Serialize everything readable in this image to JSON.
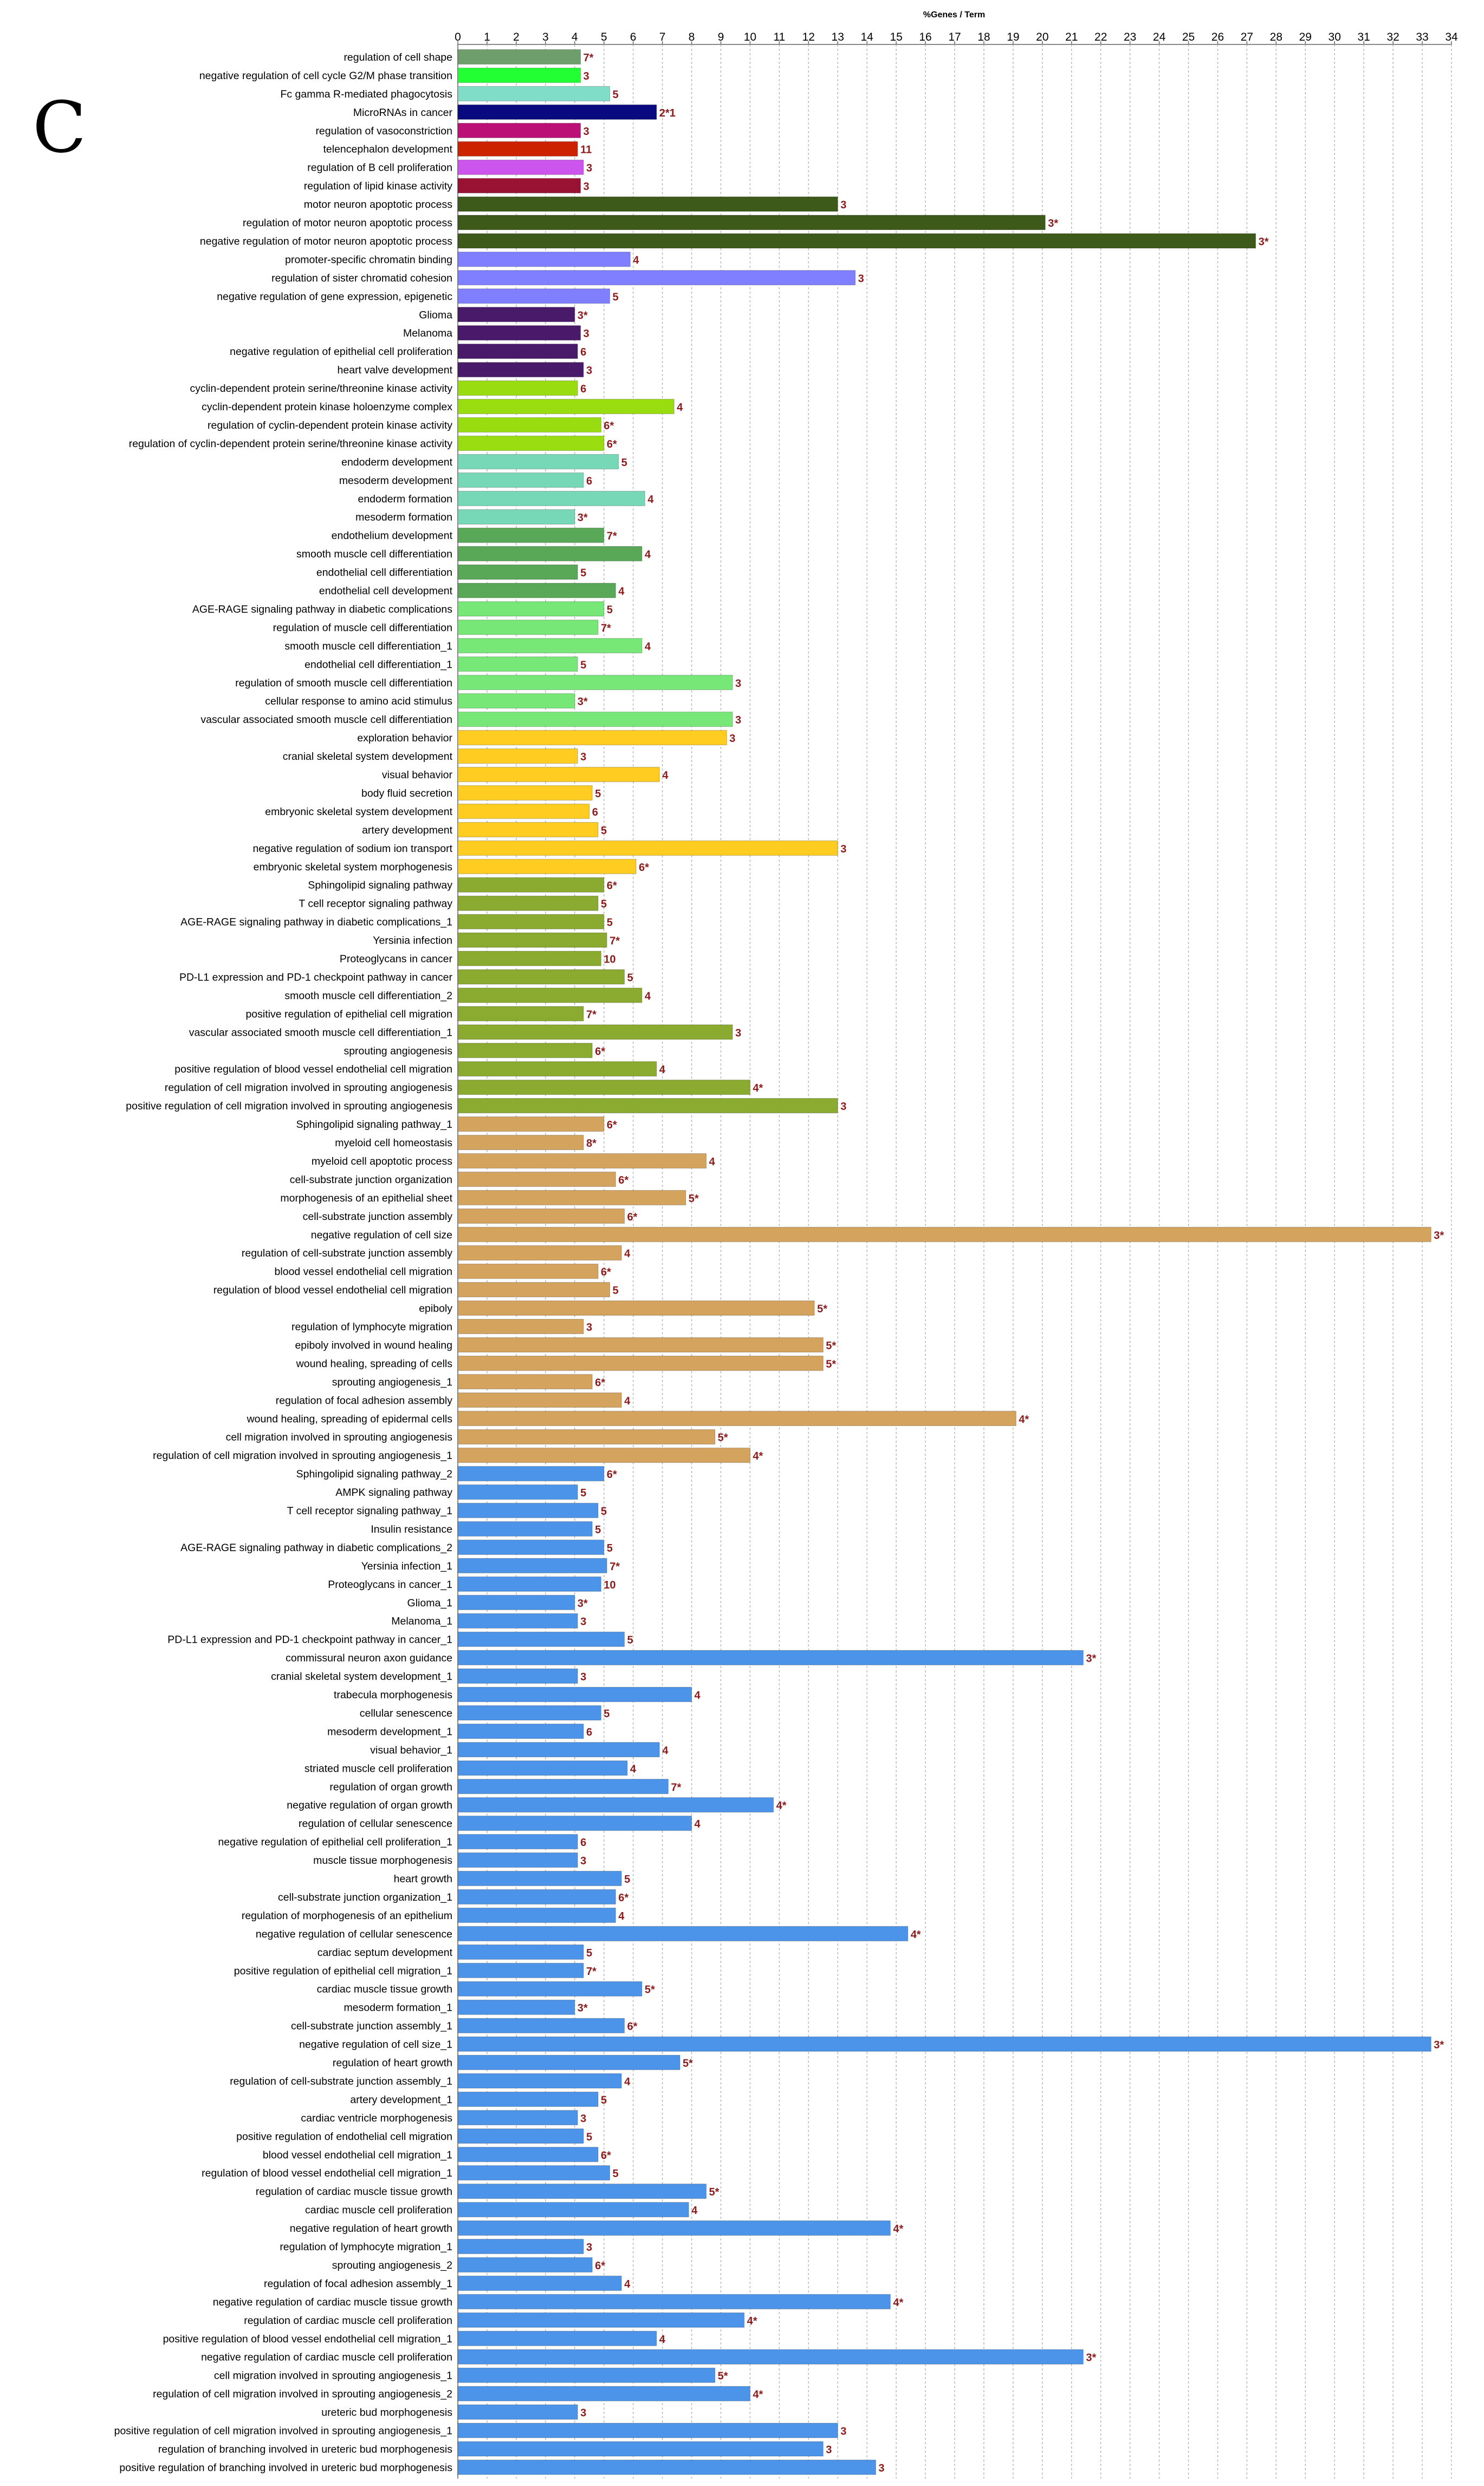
{
  "panel_label": "C",
  "chart_data": {
    "type": "bar",
    "orientation": "horizontal",
    "title": "%Genes / Term",
    "xlabel": "%Genes / Term",
    "ylabel": "",
    "xlim": [
      0,
      34
    ],
    "xticks": [
      0,
      1,
      2,
      3,
      4,
      5,
      6,
      7,
      8,
      9,
      10,
      11,
      12,
      13,
      14,
      15,
      16,
      17,
      18,
      19,
      20,
      21,
      22,
      23,
      24,
      25,
      26,
      27,
      28,
      29,
      30,
      31,
      32,
      33,
      34
    ],
    "grid": true,
    "legend": "none",
    "bars": [
      {
        "label": "regulation of cell shape",
        "value": 4.2,
        "count": "7*",
        "color": "#6E9E6B"
      },
      {
        "label": "negative regulation of cell cycle G2/M phase transition",
        "value": 4.2,
        "count": "3",
        "color": "#22FF33"
      },
      {
        "label": "Fc gamma R-mediated phagocytosis",
        "value": 5.2,
        "count": "5",
        "color": "#80DDC8"
      },
      {
        "label": "MicroRNAs in cancer",
        "value": 6.8,
        "count": "2*1",
        "color": "#0A0A80"
      },
      {
        "label": "regulation of vasoconstriction",
        "value": 4.2,
        "count": "3",
        "color": "#BB1177"
      },
      {
        "label": "telencephalon development",
        "value": 4.1,
        "count": "11",
        "color": "#CC2200"
      },
      {
        "label": "regulation of B cell proliferation",
        "value": 4.3,
        "count": "3",
        "color": "#CC55EE"
      },
      {
        "label": "regulation of lipid kinase activity",
        "value": 4.2,
        "count": "3",
        "color": "#991133"
      },
      {
        "label": "motor neuron apoptotic process",
        "value": 13.0,
        "count": "3",
        "color": "#3E5A1A"
      },
      {
        "label": "regulation of motor neuron apoptotic process",
        "value": 20.1,
        "count": "3*",
        "color": "#3E5A1A"
      },
      {
        "label": "negative regulation of motor neuron apoptotic process",
        "value": 27.3,
        "count": "3*",
        "color": "#3E5A1A"
      },
      {
        "label": "promoter-specific chromatin binding",
        "value": 5.9,
        "count": "4",
        "color": "#7F7FFF"
      },
      {
        "label": "regulation of sister chromatid cohesion",
        "value": 13.6,
        "count": "3",
        "color": "#7F7FFF"
      },
      {
        "label": "negative regulation of gene expression, epigenetic",
        "value": 5.2,
        "count": "5",
        "color": "#7F7FFF"
      },
      {
        "label": "Glioma",
        "value": 4.0,
        "count": "3*",
        "color": "#4A1A6A"
      },
      {
        "label": "Melanoma",
        "value": 4.2,
        "count": "3",
        "color": "#4A1A6A"
      },
      {
        "label": "negative regulation of epithelial cell proliferation",
        "value": 4.1,
        "count": "6",
        "color": "#4A1A6A"
      },
      {
        "label": "heart valve development",
        "value": 4.3,
        "count": "3",
        "color": "#4A1A6A"
      },
      {
        "label": "cyclin-dependent protein serine/threonine kinase activity",
        "value": 4.1,
        "count": "6",
        "color": "#99DD11"
      },
      {
        "label": "cyclin-dependent protein kinase holoenzyme complex",
        "value": 7.4,
        "count": "4",
        "color": "#99DD11"
      },
      {
        "label": "regulation of cyclin-dependent protein kinase activity",
        "value": 4.9,
        "count": "6*",
        "color": "#99DD11"
      },
      {
        "label": "regulation of cyclin-dependent protein serine/threonine kinase activity",
        "value": 5.0,
        "count": "6*",
        "color": "#99DD11"
      },
      {
        "label": "endoderm development",
        "value": 5.5,
        "count": "5",
        "color": "#77D8B8"
      },
      {
        "label": "mesoderm development",
        "value": 4.3,
        "count": "6",
        "color": "#77D8B8"
      },
      {
        "label": "endoderm formation",
        "value": 6.4,
        "count": "4",
        "color": "#77D8B8"
      },
      {
        "label": "mesoderm formation",
        "value": 4.0,
        "count": "3*",
        "color": "#77D8B8"
      },
      {
        "label": "endothelium development",
        "value": 5.0,
        "count": "7*",
        "color": "#58A858"
      },
      {
        "label": "smooth muscle cell differentiation",
        "value": 6.3,
        "count": "4",
        "color": "#58A858"
      },
      {
        "label": "endothelial cell differentiation",
        "value": 4.1,
        "count": "5",
        "color": "#58A858"
      },
      {
        "label": "endothelial cell development",
        "value": 5.4,
        "count": "4",
        "color": "#58A858"
      },
      {
        "label": "AGE-RAGE signaling pathway in diabetic complications",
        "value": 5.0,
        "count": "5",
        "color": "#77E878"
      },
      {
        "label": "regulation of muscle cell differentiation",
        "value": 4.8,
        "count": "7*",
        "color": "#77E878"
      },
      {
        "label": "smooth muscle cell differentiation_1",
        "value": 6.3,
        "count": "4",
        "color": "#77E878"
      },
      {
        "label": "endothelial cell differentiation_1",
        "value": 4.1,
        "count": "5",
        "color": "#77E878"
      },
      {
        "label": "regulation of smooth muscle cell differentiation",
        "value": 9.4,
        "count": "3",
        "color": "#77E878"
      },
      {
        "label": "cellular response to amino acid stimulus",
        "value": 4.0,
        "count": "3*",
        "color": "#77E878"
      },
      {
        "label": "vascular associated smooth muscle cell differentiation",
        "value": 9.4,
        "count": "3",
        "color": "#77E878"
      },
      {
        "label": "exploration behavior",
        "value": 9.2,
        "count": "3",
        "color": "#FFCC22"
      },
      {
        "label": "cranial skeletal system development",
        "value": 4.1,
        "count": "3",
        "color": "#FFCC22"
      },
      {
        "label": "visual behavior",
        "value": 6.9,
        "count": "4",
        "color": "#FFCC22"
      },
      {
        "label": "body fluid secretion",
        "value": 4.6,
        "count": "5",
        "color": "#FFCC22"
      },
      {
        "label": "embryonic skeletal system development",
        "value": 4.5,
        "count": "6",
        "color": "#FFCC22"
      },
      {
        "label": "artery development",
        "value": 4.8,
        "count": "5",
        "color": "#FFCC22"
      },
      {
        "label": "negative regulation of sodium ion transport",
        "value": 13.0,
        "count": "3",
        "color": "#FFCC22"
      },
      {
        "label": "embryonic skeletal system morphogenesis",
        "value": 6.1,
        "count": "6*",
        "color": "#FFCC22"
      },
      {
        "label": "Sphingolipid signaling pathway",
        "value": 5.0,
        "count": "6*",
        "color": "#8AAA30"
      },
      {
        "label": "T cell receptor signaling pathway",
        "value": 4.8,
        "count": "5",
        "color": "#8AAA30"
      },
      {
        "label": "AGE-RAGE signaling pathway in diabetic complications_1",
        "value": 5.0,
        "count": "5",
        "color": "#8AAA30"
      },
      {
        "label": "Yersinia infection",
        "value": 5.1,
        "count": "7*",
        "color": "#8AAA30"
      },
      {
        "label": "Proteoglycans in cancer",
        "value": 4.9,
        "count": "10",
        "color": "#8AAA30"
      },
      {
        "label": "PD-L1 expression and PD-1 checkpoint pathway in cancer",
        "value": 5.7,
        "count": "5",
        "color": "#8AAA30"
      },
      {
        "label": "smooth muscle cell differentiation_2",
        "value": 6.3,
        "count": "4",
        "color": "#8AAA30"
      },
      {
        "label": "positive regulation of epithelial cell migration",
        "value": 4.3,
        "count": "7*",
        "color": "#8AAA30"
      },
      {
        "label": "vascular associated smooth muscle cell differentiation_1",
        "value": 9.4,
        "count": "3",
        "color": "#8AAA30"
      },
      {
        "label": "sprouting angiogenesis",
        "value": 4.6,
        "count": "6*",
        "color": "#8AAA30"
      },
      {
        "label": "positive regulation of blood vessel endothelial cell migration",
        "value": 6.8,
        "count": "4",
        "color": "#8AAA30"
      },
      {
        "label": "regulation of cell migration involved in sprouting angiogenesis",
        "value": 10.0,
        "count": "4*",
        "color": "#8AAA30"
      },
      {
        "label": "positive regulation of cell migration involved in sprouting angiogenesis",
        "value": 13.0,
        "count": "3",
        "color": "#8AAA30"
      },
      {
        "label": "Sphingolipid signaling pathway_1",
        "value": 5.0,
        "count": "6*",
        "color": "#D4A35E"
      },
      {
        "label": "myeloid cell homeostasis",
        "value": 4.3,
        "count": "8*",
        "color": "#D4A35E"
      },
      {
        "label": "myeloid cell apoptotic process",
        "value": 8.5,
        "count": "4",
        "color": "#D4A35E"
      },
      {
        "label": "cell-substrate junction organization",
        "value": 5.4,
        "count": "6*",
        "color": "#D4A35E"
      },
      {
        "label": "morphogenesis of an epithelial sheet",
        "value": 7.8,
        "count": "5*",
        "color": "#D4A35E"
      },
      {
        "label": "cell-substrate junction assembly",
        "value": 5.7,
        "count": "6*",
        "color": "#D4A35E"
      },
      {
        "label": "negative regulation of cell size",
        "value": 33.3,
        "count": "3*",
        "color": "#D4A35E"
      },
      {
        "label": "regulation of cell-substrate junction assembly",
        "value": 5.6,
        "count": "4",
        "color": "#D4A35E"
      },
      {
        "label": "blood vessel endothelial cell migration",
        "value": 4.8,
        "count": "6*",
        "color": "#D4A35E"
      },
      {
        "label": "regulation of blood vessel endothelial cell migration",
        "value": 5.2,
        "count": "5",
        "color": "#D4A35E"
      },
      {
        "label": "epiboly",
        "value": 12.2,
        "count": "5*",
        "color": "#D4A35E"
      },
      {
        "label": "regulation of lymphocyte migration",
        "value": 4.3,
        "count": "3",
        "color": "#D4A35E"
      },
      {
        "label": "epiboly involved in wound healing",
        "value": 12.5,
        "count": "5*",
        "color": "#D4A35E"
      },
      {
        "label": "wound healing, spreading of cells",
        "value": 12.5,
        "count": "5*",
        "color": "#D4A35E"
      },
      {
        "label": "sprouting angiogenesis_1",
        "value": 4.6,
        "count": "6*",
        "color": "#D4A35E"
      },
      {
        "label": "regulation of focal adhesion assembly",
        "value": 5.6,
        "count": "4",
        "color": "#D4A35E"
      },
      {
        "label": "wound healing, spreading of epidermal cells",
        "value": 19.1,
        "count": "4*",
        "color": "#D4A35E"
      },
      {
        "label": "cell migration involved in sprouting angiogenesis",
        "value": 8.8,
        "count": "5*",
        "color": "#D4A35E"
      },
      {
        "label": "regulation of cell migration involved in sprouting angiogenesis_1",
        "value": 10.0,
        "count": "4*",
        "color": "#D4A35E"
      },
      {
        "label": "Sphingolipid signaling pathway_2",
        "value": 5.0,
        "count": "6*",
        "color": "#4C94EA"
      },
      {
        "label": "AMPK signaling pathway",
        "value": 4.1,
        "count": "5",
        "color": "#4C94EA"
      },
      {
        "label": "T cell receptor signaling pathway_1",
        "value": 4.8,
        "count": "5",
        "color": "#4C94EA"
      },
      {
        "label": "Insulin resistance",
        "value": 4.6,
        "count": "5",
        "color": "#4C94EA"
      },
      {
        "label": "AGE-RAGE signaling pathway in diabetic complications_2",
        "value": 5.0,
        "count": "5",
        "color": "#4C94EA"
      },
      {
        "label": "Yersinia infection_1",
        "value": 5.1,
        "count": "7*",
        "color": "#4C94EA"
      },
      {
        "label": "Proteoglycans in cancer_1",
        "value": 4.9,
        "count": "10",
        "color": "#4C94EA"
      },
      {
        "label": "Glioma_1",
        "value": 4.0,
        "count": "3*",
        "color": "#4C94EA"
      },
      {
        "label": "Melanoma_1",
        "value": 4.1,
        "count": "3",
        "color": "#4C94EA"
      },
      {
        "label": "PD-L1 expression and PD-1 checkpoint pathway in cancer_1",
        "value": 5.7,
        "count": "5",
        "color": "#4C94EA"
      },
      {
        "label": "commissural neuron axon guidance",
        "value": 21.4,
        "count": "3*",
        "color": "#4C94EA"
      },
      {
        "label": "cranial skeletal system development_1",
        "value": 4.1,
        "count": "3",
        "color": "#4C94EA"
      },
      {
        "label": "trabecula morphogenesis",
        "value": 8.0,
        "count": "4",
        "color": "#4C94EA"
      },
      {
        "label": "cellular senescence",
        "value": 4.9,
        "count": "5",
        "color": "#4C94EA"
      },
      {
        "label": "mesoderm development_1",
        "value": 4.3,
        "count": "6",
        "color": "#4C94EA"
      },
      {
        "label": "visual behavior_1",
        "value": 6.9,
        "count": "4",
        "color": "#4C94EA"
      },
      {
        "label": "striated muscle cell proliferation",
        "value": 5.8,
        "count": "4",
        "color": "#4C94EA"
      },
      {
        "label": "regulation of organ growth",
        "value": 7.2,
        "count": "7*",
        "color": "#4C94EA"
      },
      {
        "label": "negative regulation of organ growth",
        "value": 10.8,
        "count": "4*",
        "color": "#4C94EA"
      },
      {
        "label": "regulation of cellular senescence",
        "value": 8.0,
        "count": "4",
        "color": "#4C94EA"
      },
      {
        "label": "negative regulation of epithelial cell proliferation_1",
        "value": 4.1,
        "count": "6",
        "color": "#4C94EA"
      },
      {
        "label": "muscle tissue morphogenesis",
        "value": 4.1,
        "count": "3",
        "color": "#4C94EA"
      },
      {
        "label": "heart growth",
        "value": 5.6,
        "count": "5",
        "color": "#4C94EA"
      },
      {
        "label": "cell-substrate junction organization_1",
        "value": 5.4,
        "count": "6*",
        "color": "#4C94EA"
      },
      {
        "label": "regulation of morphogenesis of an epithelium",
        "value": 5.4,
        "count": "4",
        "color": "#4C94EA"
      },
      {
        "label": "negative regulation of cellular senescence",
        "value": 15.4,
        "count": "4*",
        "color": "#4C94EA"
      },
      {
        "label": "cardiac septum development",
        "value": 4.3,
        "count": "5",
        "color": "#4C94EA"
      },
      {
        "label": "positive regulation of epithelial cell migration_1",
        "value": 4.3,
        "count": "7*",
        "color": "#4C94EA"
      },
      {
        "label": "cardiac muscle tissue growth",
        "value": 6.3,
        "count": "5*",
        "color": "#4C94EA"
      },
      {
        "label": "mesoderm formation_1",
        "value": 4.0,
        "count": "3*",
        "color": "#4C94EA"
      },
      {
        "label": "cell-substrate junction assembly_1",
        "value": 5.7,
        "count": "6*",
        "color": "#4C94EA"
      },
      {
        "label": "negative regulation of cell size_1",
        "value": 33.3,
        "count": "3*",
        "color": "#4C94EA"
      },
      {
        "label": "regulation of heart growth",
        "value": 7.6,
        "count": "5*",
        "color": "#4C94EA"
      },
      {
        "label": "regulation of cell-substrate junction assembly_1",
        "value": 5.6,
        "count": "4",
        "color": "#4C94EA"
      },
      {
        "label": "artery development_1",
        "value": 4.8,
        "count": "5",
        "color": "#4C94EA"
      },
      {
        "label": "cardiac ventricle morphogenesis",
        "value": 4.1,
        "count": "3",
        "color": "#4C94EA"
      },
      {
        "label": "positive regulation of endothelial cell migration",
        "value": 4.3,
        "count": "5",
        "color": "#4C94EA"
      },
      {
        "label": "blood vessel endothelial cell migration_1",
        "value": 4.8,
        "count": "6*",
        "color": "#4C94EA"
      },
      {
        "label": "regulation of blood vessel endothelial cell migration_1",
        "value": 5.2,
        "count": "5",
        "color": "#4C94EA"
      },
      {
        "label": "regulation of cardiac muscle tissue growth",
        "value": 8.5,
        "count": "5*",
        "color": "#4C94EA"
      },
      {
        "label": "cardiac muscle cell proliferation",
        "value": 7.9,
        "count": "4",
        "color": "#4C94EA"
      },
      {
        "label": "negative regulation of heart growth",
        "value": 14.8,
        "count": "4*",
        "color": "#4C94EA"
      },
      {
        "label": "regulation of lymphocyte migration_1",
        "value": 4.3,
        "count": "3",
        "color": "#4C94EA"
      },
      {
        "label": "sprouting angiogenesis_2",
        "value": 4.6,
        "count": "6*",
        "color": "#4C94EA"
      },
      {
        "label": "regulation of focal adhesion assembly_1",
        "value": 5.6,
        "count": "4",
        "color": "#4C94EA"
      },
      {
        "label": "negative regulation of cardiac muscle tissue growth",
        "value": 14.8,
        "count": "4*",
        "color": "#4C94EA"
      },
      {
        "label": "regulation of cardiac muscle cell proliferation",
        "value": 9.8,
        "count": "4*",
        "color": "#4C94EA"
      },
      {
        "label": "positive regulation of blood vessel endothelial cell migration_1",
        "value": 6.8,
        "count": "4",
        "color": "#4C94EA"
      },
      {
        "label": "negative regulation of cardiac muscle cell proliferation",
        "value": 21.4,
        "count": "3*",
        "color": "#4C94EA"
      },
      {
        "label": "cell migration involved in sprouting angiogenesis_1",
        "value": 8.8,
        "count": "5*",
        "color": "#4C94EA"
      },
      {
        "label": "regulation of cell migration involved in sprouting angiogenesis_2",
        "value": 10.0,
        "count": "4*",
        "color": "#4C94EA"
      },
      {
        "label": "ureteric bud morphogenesis",
        "value": 4.1,
        "count": "3",
        "color": "#4C94EA"
      },
      {
        "label": "positive regulation of cell migration involved in sprouting angiogenesis_1",
        "value": 13.0,
        "count": "3",
        "color": "#4C94EA"
      },
      {
        "label": "regulation of branching involved in ureteric bud morphogenesis",
        "value": 12.5,
        "count": "3",
        "color": "#4C94EA"
      },
      {
        "label": "positive regulation of branching involved in ureteric bud morphogenesis",
        "value": 14.3,
        "count": "3",
        "color": "#4C94EA"
      }
    ]
  }
}
